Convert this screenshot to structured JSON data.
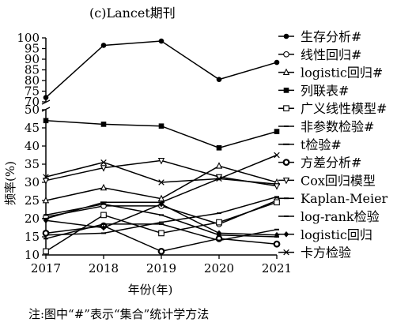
{
  "chart_data": {
    "type": "line",
    "title": "(c)Lancet期刊",
    "xlabel": "年份(年)",
    "ylabel": "频率(%)",
    "x": [
      2017,
      2018,
      2019,
      2020,
      2021
    ],
    "x_tick_labels": [
      "2017",
      "2018",
      "2019",
      "2020",
      "2021"
    ],
    "y_ticks_lower": [
      10,
      15,
      20,
      25,
      30,
      35,
      40,
      45,
      50
    ],
    "y_ticks_upper": [
      70,
      75,
      80,
      85,
      90,
      95,
      100
    ],
    "ylim_lower": [
      10,
      50
    ],
    "ylim_upper": [
      70,
      100
    ],
    "axis_break": true,
    "grid": false,
    "legend_position": "right",
    "note": "注:图中“#”表示“集合”统计学方法",
    "series": [
      {
        "name": "生存分析#",
        "marker": "filled-circle",
        "values": [
          72,
          96.5,
          98.5,
          80.5,
          88.5
        ]
      },
      {
        "name": "线性回归#",
        "marker": "open-circle",
        "values": [
          20.5,
          23.5,
          23.5,
          18.5,
          25
        ]
      },
      {
        "name": "logistic回归#",
        "marker": "up-triangle",
        "values": [
          25,
          28.5,
          25.5,
          34.5,
          30
        ]
      },
      {
        "name": "列联表#",
        "marker": "filled-square",
        "values": [
          47,
          46,
          45.5,
          39.5,
          44
        ]
      },
      {
        "name": "广义线性模型#",
        "marker": "open-square",
        "values": [
          11,
          21,
          16,
          19,
          24.5
        ]
      },
      {
        "name": "非参数检验#",
        "marker": "dash",
        "values": [
          15.5,
          16,
          19,
          21.5,
          26
        ]
      },
      {
        "name": "t检验#",
        "marker": "hline",
        "values": [
          20,
          24.5,
          24.5,
          31,
          29.5
        ]
      },
      {
        "name": "方差分析#",
        "marker": "bold-circle",
        "values": [
          16,
          18,
          11,
          14.5,
          13
        ]
      },
      {
        "name": "Cox回归模型",
        "marker": "down-triangle",
        "values": [
          30.5,
          34,
          36,
          31.5,
          29
        ]
      },
      {
        "name": "Kaplan-Meier",
        "marker": "dash",
        "values": [
          21,
          24,
          21,
          15.5,
          15
        ]
      },
      {
        "name": "log-rank检验",
        "marker": "dash",
        "values": [
          14.5,
          18.5,
          18.5,
          14,
          17
        ]
      },
      {
        "name": "logistic回归",
        "marker": "diamond",
        "values": [
          19.5,
          17.5,
          24,
          16,
          15.5
        ]
      },
      {
        "name": "卡方检验",
        "marker": "x",
        "values": [
          31.5,
          35.5,
          30,
          31,
          37.5
        ]
      }
    ]
  }
}
